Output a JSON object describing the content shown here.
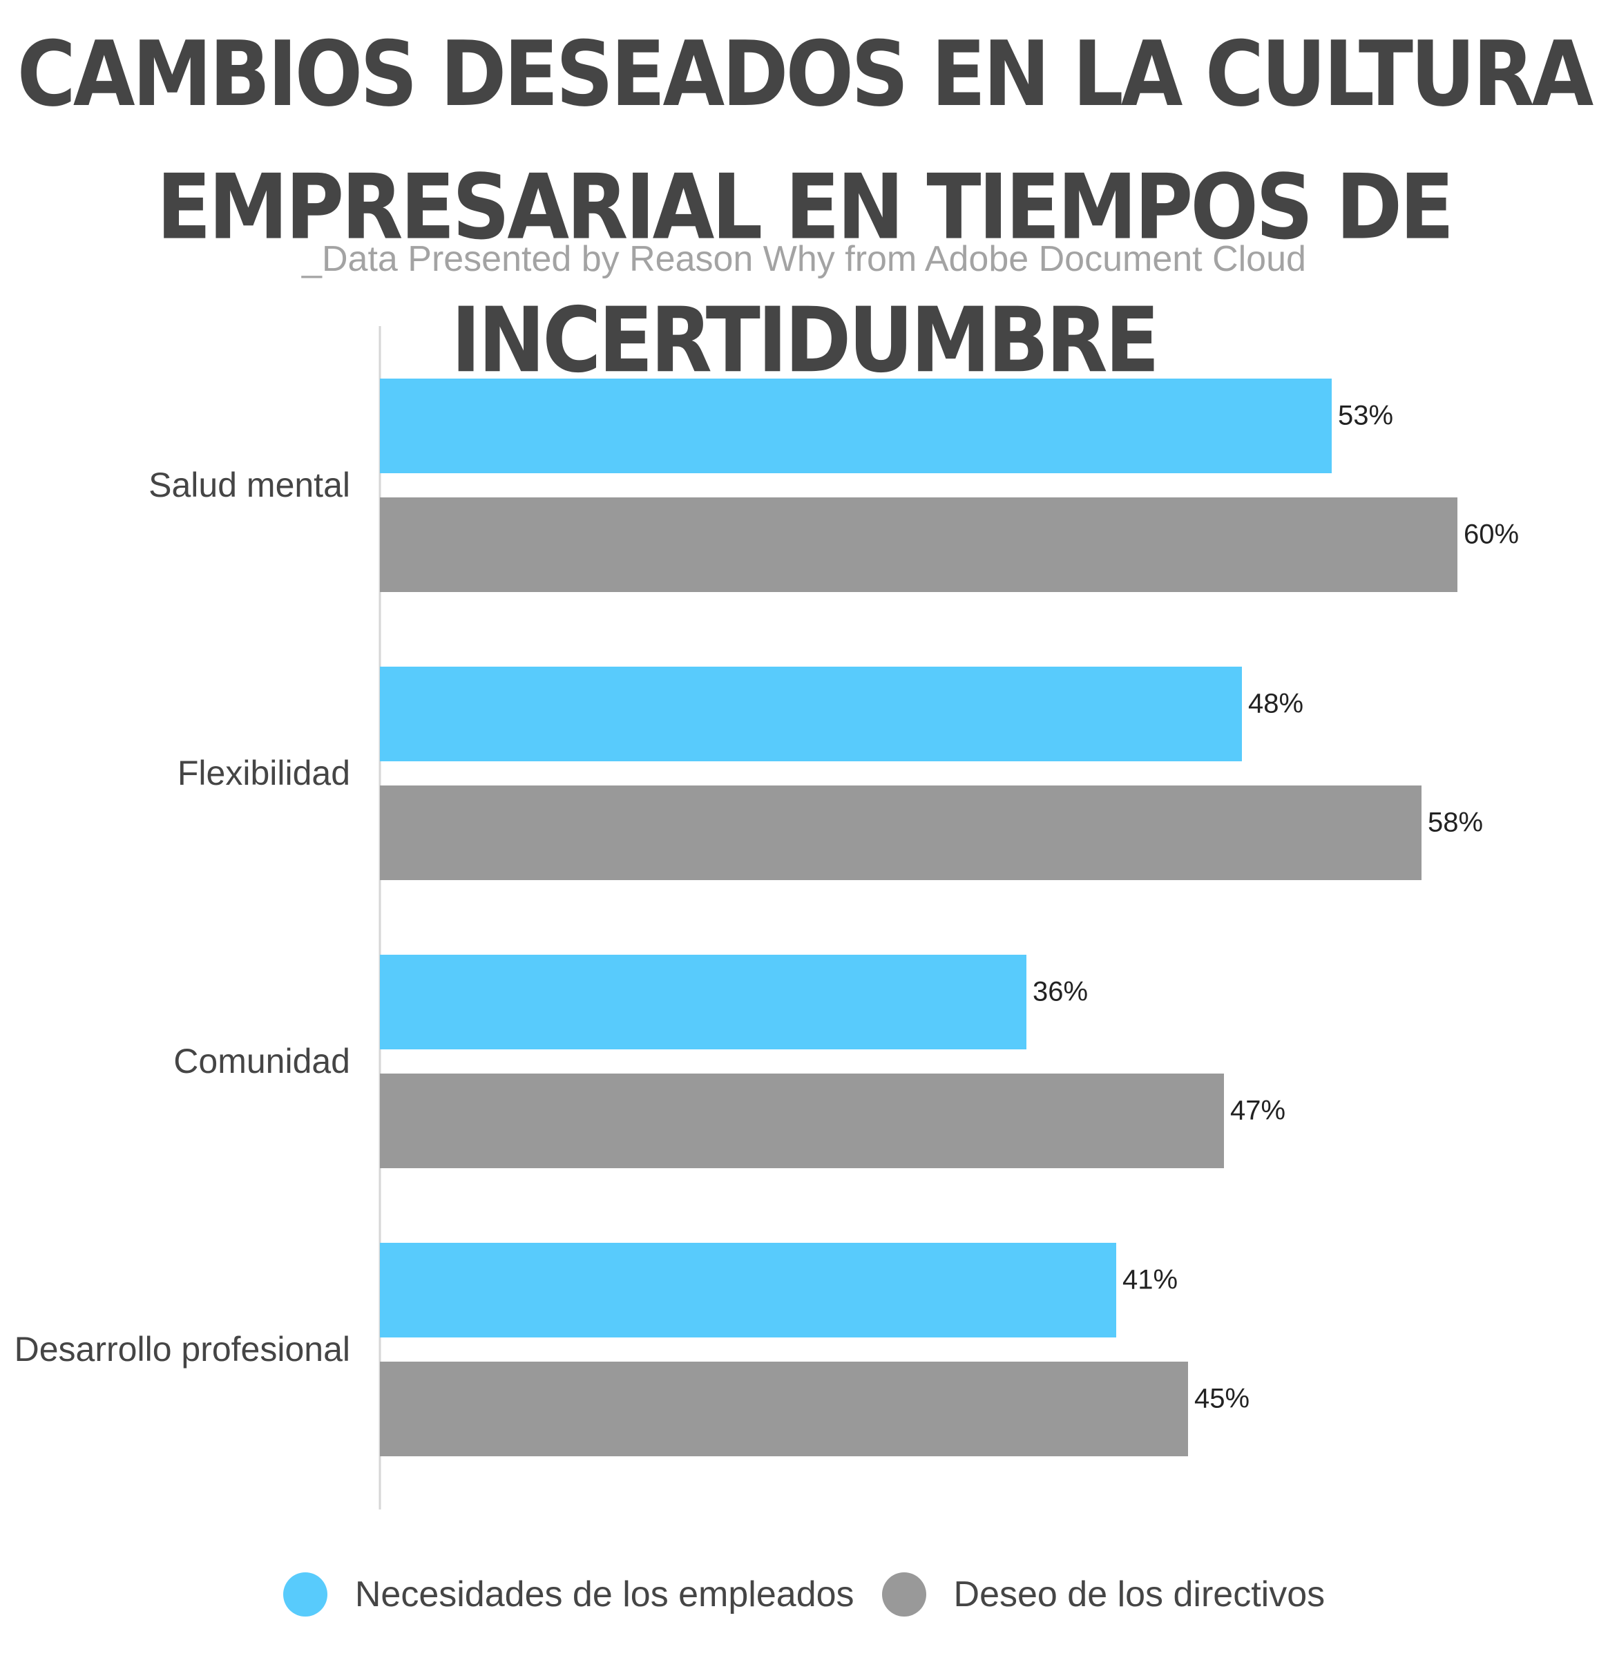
{
  "colors": {
    "employees": "#58cbfc",
    "directors": "#999999",
    "text": "#454545",
    "axis": "#d6d6d6"
  },
  "chart_data": {
    "type": "bar",
    "orientation": "horizontal",
    "title_lines": [
      "CAMBIOS DESEADOS EN LA CULTURA",
      "EMPRESARIAL EN TIEMPOS DE INCERTIDUMBRE"
    ],
    "subtitle": "_Data Presented by Reason Why from Adobe Document Cloud",
    "categories": [
      "Salud mental",
      "Flexibilidad",
      "Comunidad",
      "Desarrollo profesional"
    ],
    "series": [
      {
        "name": "Necesidades de los empleados",
        "values": [
          53,
          48,
          36,
          41
        ],
        "labels": [
          "53%",
          "48%",
          "36%",
          "41%"
        ]
      },
      {
        "name": "Deseo de los directivos",
        "values": [
          60,
          58,
          47,
          45
        ],
        "labels": [
          "60%",
          "58%",
          "47%",
          "45%"
        ]
      }
    ],
    "xlim": [
      0,
      60
    ],
    "grid": false,
    "legend": "bottom-center"
  }
}
